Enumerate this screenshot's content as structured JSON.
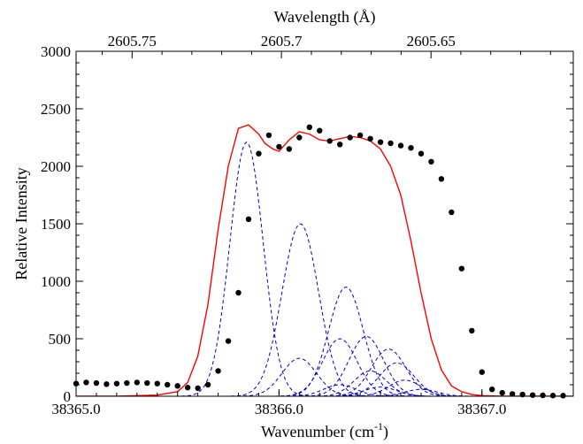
{
  "chart_data": {
    "type": "line",
    "title": "",
    "xlabel_main": "Wavenumber (cm",
    "xlabel_sup": "-1",
    "xlabel_close": ")",
    "x2label": "Wavelength (Å)",
    "ylabel": "Relative Intensity",
    "xlim": [
      38365.0,
      38367.45
    ],
    "ylim": [
      0,
      3000
    ],
    "x_ticks": [
      {
        "value": 38365.0,
        "label": "38365.0"
      },
      {
        "value": 38366.0,
        "label": "38366.0"
      },
      {
        "value": 38367.0,
        "label": "38367.0"
      }
    ],
    "y_ticks": [
      {
        "value": 0,
        "label": "0"
      },
      {
        "value": 500,
        "label": "500"
      },
      {
        "value": 1000,
        "label": "1000"
      },
      {
        "value": 1500,
        "label": "1500"
      },
      {
        "value": 2000,
        "label": "2000"
      },
      {
        "value": 2500,
        "label": "2500"
      },
      {
        "value": 3000,
        "label": "3000"
      }
    ],
    "x2_ticks": [
      {
        "wavenumber": 38365.276,
        "label": "2605.75"
      },
      {
        "wavenumber": 38366.012,
        "label": "2605.7"
      },
      {
        "wavenumber": 38366.749,
        "label": "2605.65"
      }
    ],
    "series": [
      {
        "style": "dots",
        "color": "#000000",
        "x": [
          38365.0,
          38365.05,
          38365.1,
          38365.15,
          38365.2,
          38365.25,
          38365.3,
          38365.35,
          38365.4,
          38365.45,
          38365.5,
          38365.55,
          38365.6,
          38365.65,
          38365.7,
          38365.75,
          38365.8,
          38365.85,
          38365.9,
          38365.95,
          38366.0,
          38366.05,
          38366.1,
          38366.15,
          38366.2,
          38366.25,
          38366.3,
          38366.35,
          38366.4,
          38366.45,
          38366.5,
          38366.55,
          38366.6,
          38366.65,
          38366.7,
          38366.75,
          38366.8,
          38366.85,
          38366.9,
          38366.95,
          38367.0,
          38367.05,
          38367.1,
          38367.15,
          38367.2,
          38367.25,
          38367.3,
          38367.35,
          38367.4
        ],
        "y": [
          110,
          120,
          115,
          105,
          110,
          115,
          120,
          115,
          110,
          100,
          90,
          75,
          70,
          100,
          220,
          480,
          900,
          1540,
          2110,
          2270,
          2170,
          2150,
          2250,
          2340,
          2310,
          2220,
          2190,
          2250,
          2270,
          2240,
          2210,
          2200,
          2180,
          2160,
          2110,
          2040,
          1890,
          1600,
          1110,
          570,
          210,
          60,
          30,
          20,
          15,
          10,
          8,
          6,
          5
        ]
      },
      {
        "style": "solid",
        "color": "#ff0000",
        "x": [
          38365.0,
          38365.2,
          38365.4,
          38365.5,
          38365.55,
          38365.6,
          38365.65,
          38365.7,
          38365.75,
          38365.8,
          38365.85,
          38365.9,
          38365.93,
          38365.97,
          38366.0,
          38366.05,
          38366.1,
          38366.15,
          38366.2,
          38366.25,
          38366.3,
          38366.35,
          38366.4,
          38366.45,
          38366.5,
          38366.55,
          38366.6,
          38366.65,
          38366.7,
          38366.75,
          38366.8,
          38366.85,
          38366.9,
          38366.95,
          38367.0,
          38367.1,
          38367.2,
          38367.45
        ],
        "y": [
          0,
          0,
          10,
          40,
          120,
          350,
          800,
          1450,
          2000,
          2330,
          2360,
          2280,
          2200,
          2150,
          2130,
          2230,
          2300,
          2280,
          2230,
          2220,
          2240,
          2260,
          2250,
          2220,
          2150,
          2000,
          1750,
          1350,
          900,
          500,
          230,
          90,
          40,
          15,
          5,
          0,
          0,
          0
        ]
      }
    ],
    "components": {
      "style": "dashed",
      "color": "#0000cc",
      "peaks": [
        {
          "center": 38365.84,
          "amplitude": 2210,
          "sigma": 0.082
        },
        {
          "center": 38366.105,
          "amplitude": 1500,
          "sigma": 0.09
        },
        {
          "center": 38366.33,
          "amplitude": 950,
          "sigma": 0.085
        },
        {
          "center": 38366.43,
          "amplitude": 520,
          "sigma": 0.085
        },
        {
          "center": 38366.54,
          "amplitude": 410,
          "sigma": 0.085
        },
        {
          "center": 38366.3,
          "amplitude": 500,
          "sigma": 0.085
        },
        {
          "center": 38366.1,
          "amplitude": 330,
          "sigma": 0.085
        },
        {
          "center": 38366.58,
          "amplitude": 290,
          "sigma": 0.085
        },
        {
          "center": 38366.45,
          "amplitude": 220,
          "sigma": 0.08
        },
        {
          "center": 38366.62,
          "amplitude": 140,
          "sigma": 0.08
        },
        {
          "center": 38366.3,
          "amplitude": 100,
          "sigma": 0.08
        },
        {
          "center": 38366.5,
          "amplitude": 80,
          "sigma": 0.08
        },
        {
          "center": 38366.7,
          "amplitude": 60,
          "sigma": 0.08
        }
      ]
    }
  }
}
